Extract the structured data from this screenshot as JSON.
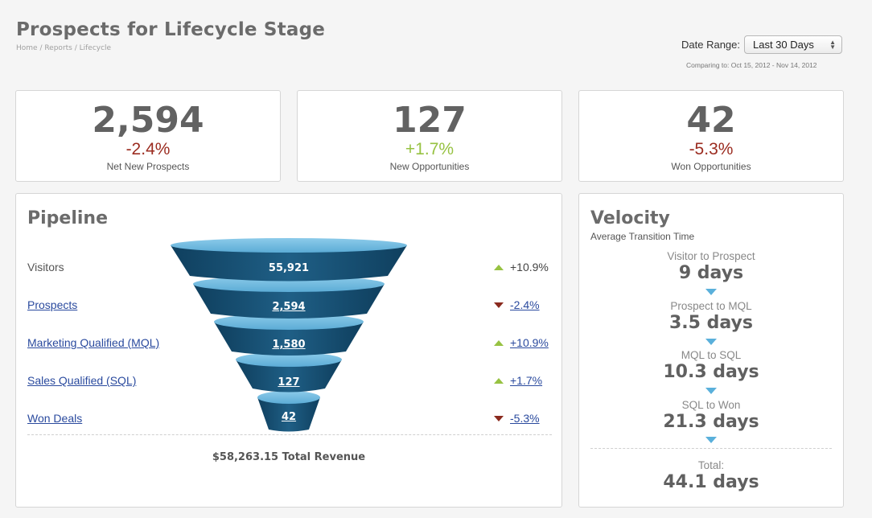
{
  "header": {
    "title": "Prospects for Lifecycle Stage",
    "breadcrumb": "Home / Reports / Lifecycle",
    "date_range_label": "Date Range:",
    "date_range_value": "Last 30 Days",
    "comparing": "Comparing to: Oct 15, 2012 - Nov 14, 2012"
  },
  "kpis": [
    {
      "value": "2,594",
      "change": "-2.4%",
      "label": "Net New Prospects",
      "trend": "down"
    },
    {
      "value": "127",
      "change": "+1.7%",
      "label": "New Opportunities",
      "trend": "up"
    },
    {
      "value": "42",
      "change": "-5.3%",
      "label": "Won Opportunities",
      "trend": "down"
    }
  ],
  "pipeline": {
    "title": "Pipeline",
    "stages": [
      {
        "label": "Visitors",
        "value": "55,921",
        "delta": "+10.9%",
        "trend": "up"
      },
      {
        "label": "Prospects",
        "value": "2,594",
        "delta": "-2.4%",
        "trend": "down"
      },
      {
        "label": "Marketing Qualified (MQL)",
        "value": "1,580",
        "delta": "+10.9%",
        "trend": "up"
      },
      {
        "label": "Sales Qualified (SQL)",
        "value": "127",
        "delta": "+1.7%",
        "trend": "up"
      },
      {
        "label": "Won Deals",
        "value": "42",
        "delta": "-5.3%",
        "trend": "down"
      }
    ],
    "total_revenue": "$58,263.15 Total Revenue"
  },
  "velocity": {
    "title": "Velocity",
    "subtitle": "Average Transition Time",
    "steps": [
      {
        "name": "Visitor to Prospect",
        "days": "9 days"
      },
      {
        "name": "Prospect to MQL",
        "days": "3.5 days"
      },
      {
        "name": "MQL to SQL",
        "days": "10.3 days"
      },
      {
        "name": "SQL to Won",
        "days": "21.3 days"
      }
    ],
    "total_label": "Total:",
    "total_days": "44.1 days"
  },
  "colors": {
    "negative": "#9b2c20",
    "positive": "#97c242",
    "funnel_dark": "#1e5a80",
    "funnel_light": "#6bb8dd",
    "link": "#2a4a9e"
  },
  "icons": [
    "triangle-up-icon",
    "triangle-down-icon",
    "select-arrows-icon",
    "velocity-arrow-icon"
  ]
}
